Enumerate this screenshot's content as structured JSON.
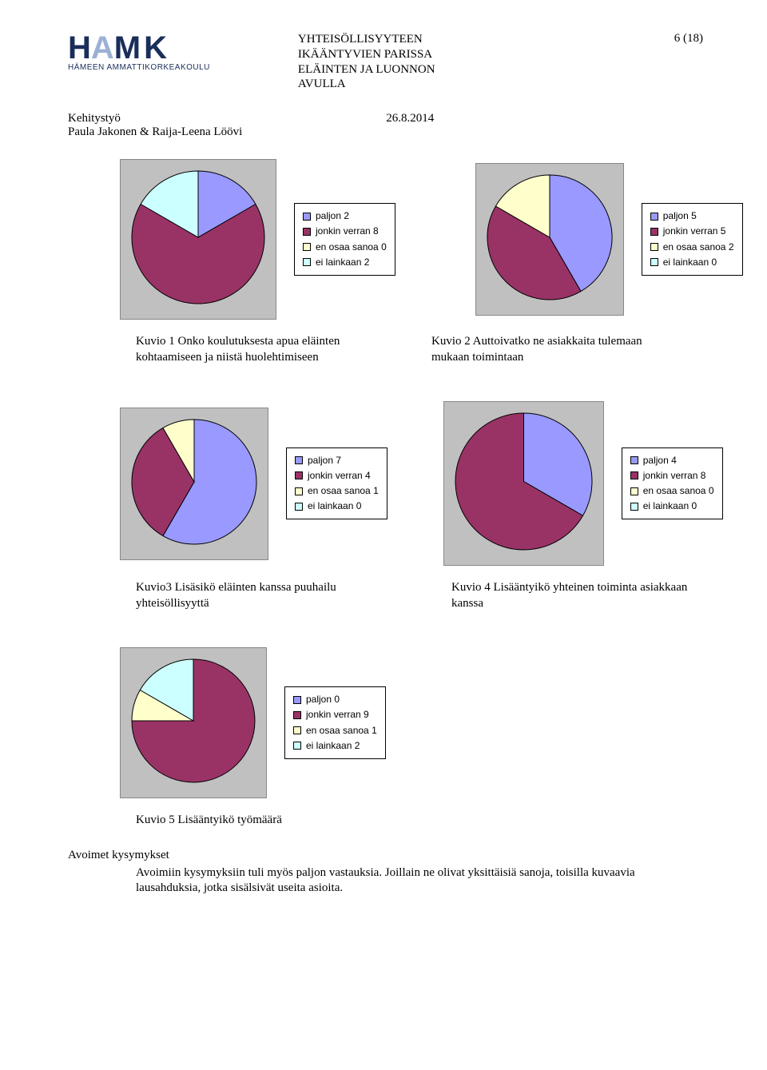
{
  "header": {
    "logo_letters": "HAMK",
    "logo_sub": "HÄMEEN AMMATTIKORKEAKOULU",
    "title_l1": "YHTEISÖLLISYYTEEN",
    "title_l2": "IKÄÄNTYVIEN PARISSA",
    "title_l3": "ELÄINTEN JA LUONNON",
    "title_l4": "AVULLA",
    "page_no": "6 (18)",
    "sub_l1": "Kehitystyö",
    "sub_l2": "Paula Jakonen & Raija-Leena Löövi",
    "date": "26.8.2014"
  },
  "palette": {
    "blue": "#9999ff",
    "maroon": "#993366",
    "cream": "#ffffcc",
    "cyan": "#ccffff",
    "border": "#000000",
    "plot_bg": "#c0c0c0"
  },
  "charts": {
    "c1": {
      "size": 170,
      "legend": [
        {
          "label": "paljon 2",
          "color": "#9999ff"
        },
        {
          "label": "jonkin verran 8",
          "color": "#993366"
        },
        {
          "label": "en osaa sanoa 0",
          "color": "#ffffcc"
        },
        {
          "label": "ei lainkaan 2",
          "color": "#ccffff"
        }
      ],
      "slices": [
        {
          "value": 2,
          "color": "#9999ff"
        },
        {
          "value": 8,
          "color": "#993366"
        },
        {
          "value": 0,
          "color": "#ffffcc"
        },
        {
          "value": 2,
          "color": "#ccffff"
        }
      ]
    },
    "c2": {
      "size": 160,
      "legend": [
        {
          "label": "paljon 5",
          "color": "#9999ff"
        },
        {
          "label": "jonkin verran 5",
          "color": "#993366"
        },
        {
          "label": "en osaa sanoa 2",
          "color": "#ffffcc"
        },
        {
          "label": "ei lainkaan 0",
          "color": "#ccffff"
        }
      ],
      "slices": [
        {
          "value": 5,
          "color": "#9999ff"
        },
        {
          "value": 5,
          "color": "#993366"
        },
        {
          "value": 2,
          "color": "#ffffcc"
        },
        {
          "value": 0,
          "color": "#ccffff"
        }
      ]
    },
    "c3": {
      "size": 160,
      "legend": [
        {
          "label": "paljon 7",
          "color": "#9999ff"
        },
        {
          "label": "jonkin verran 4",
          "color": "#993366"
        },
        {
          "label": "en osaa sanoa 1",
          "color": "#ffffcc"
        },
        {
          "label": "ei lainkaan 0",
          "color": "#ccffff"
        }
      ],
      "slices": [
        {
          "value": 7,
          "color": "#9999ff"
        },
        {
          "value": 4,
          "color": "#993366"
        },
        {
          "value": 1,
          "color": "#ffffcc"
        },
        {
          "value": 0,
          "color": "#ccffff"
        }
      ]
    },
    "c4": {
      "size": 175,
      "legend": [
        {
          "label": "paljon 4",
          "color": "#9999ff"
        },
        {
          "label": "jonkin verran 8",
          "color": "#993366"
        },
        {
          "label": "en osaa sanoa 0",
          "color": "#ffffcc"
        },
        {
          "label": "ei lainkaan 0",
          "color": "#ccffff"
        }
      ],
      "slices": [
        {
          "value": 4,
          "color": "#9999ff"
        },
        {
          "value": 8,
          "color": "#993366"
        },
        {
          "value": 0,
          "color": "#ffffcc"
        },
        {
          "value": 0,
          "color": "#ccffff"
        }
      ]
    },
    "c5": {
      "size": 158,
      "legend": [
        {
          "label": "paljon 0",
          "color": "#9999ff"
        },
        {
          "label": "jonkin verran 9",
          "color": "#993366"
        },
        {
          "label": "en osaa sanoa 1",
          "color": "#ffffcc"
        },
        {
          "label": "ei lainkaan 2",
          "color": "#ccffff"
        }
      ],
      "slices": [
        {
          "value": 0,
          "color": "#9999ff"
        },
        {
          "value": 9,
          "color": "#993366"
        },
        {
          "value": 1,
          "color": "#ffffcc"
        },
        {
          "value": 2,
          "color": "#ccffff"
        }
      ]
    }
  },
  "captions": {
    "cap1": "Kuvio 1 Onko koulutuksesta apua eläinten kohtaamiseen ja niistä huolehtimiseen",
    "cap2": "Kuvio 2 Auttoivatko ne asiakkaita tulemaan mukaan toimintaan",
    "cap3": "Kuvio3 Lisäsikö eläinten kanssa puuhailu yhteisöllisyyttä",
    "cap4": "Kuvio 4 Lisääntyikö yhteinen toiminta asiakkaan kanssa",
    "cap5": "Kuvio 5 Lisääntyikö työmäärä"
  },
  "footer": {
    "section": "Avoimet kysymykset",
    "para": "Avoimiin kysymyksiin tuli myös paljon vastauksia. Joillain ne olivat yksittäisiä sanoja, toisilla kuvaavia lausahduksia, jotka sisälsivät useita asioita."
  }
}
